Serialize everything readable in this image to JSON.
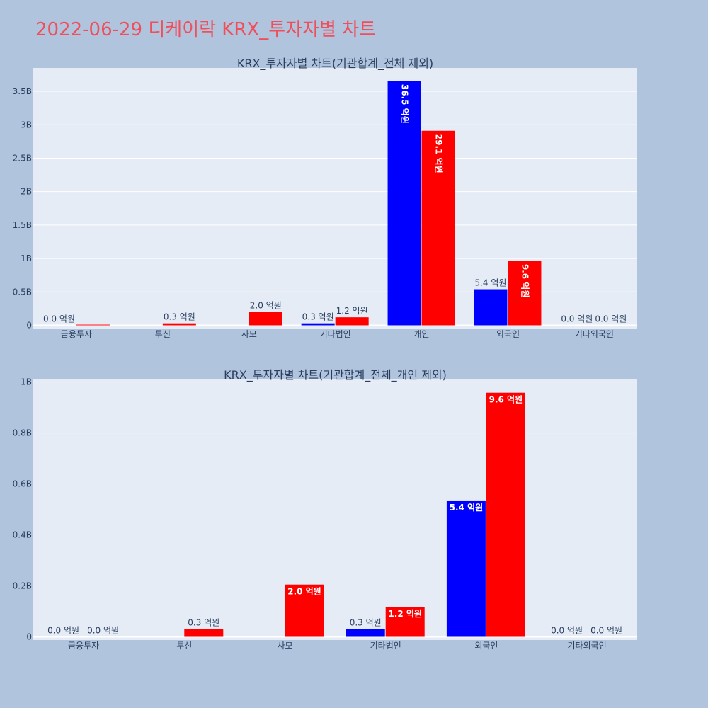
{
  "page_title": "2022-06-29 디케이락 KRX_투자자별 차트",
  "colors": {
    "page_background": "#b0c4de",
    "plot_background": "#e5ecf6",
    "title": "#ef4f5b",
    "text": "#2a3f5f",
    "series_a": "#0000ff",
    "series_b": "#ff0000"
  },
  "chart_data": [
    {
      "type": "bar",
      "title": "KRX_투자자별 차트(기관합계_전체 제외)",
      "categories": [
        "금융투자",
        "투신",
        "사모",
        "기타법인",
        "개인",
        "외국인",
        "기타외국인"
      ],
      "series": [
        {
          "color": "#0000ff",
          "values": [
            0,
            0,
            0,
            30000000,
            3650000000,
            540000000,
            0
          ],
          "labels": [
            "0.0 억원",
            "",
            "",
            "0.3 억원",
            "36.5 억원",
            "5.4 억원",
            "0.0 억원"
          ]
        },
        {
          "color": "#ff0000",
          "values": [
            10000000,
            30000000,
            200000000,
            120000000,
            2910000000,
            960000000,
            0
          ],
          "labels": [
            "",
            "0.3 억원",
            "2.0 억원",
            "1.2 억원",
            "29.1 억원",
            "9.6 억원",
            "0.0 억원"
          ]
        }
      ],
      "yticks": [
        0,
        500000000,
        1000000000,
        1500000000,
        2000000000,
        2500000000,
        3000000000,
        3500000000
      ],
      "ytick_labels": [
        "0",
        "0.5B",
        "1B",
        "1.5B",
        "2B",
        "2.5B",
        "3B",
        "3.5B"
      ],
      "ylim": [
        0,
        3850000000
      ],
      "grid": true,
      "legend": "none"
    },
    {
      "type": "bar",
      "title": "KRX_투자자별 차트(기관합계_전체_개인 제외)",
      "categories": [
        "금융투자",
        "투신",
        "사모",
        "기타법인",
        "외국인",
        "기타외국인"
      ],
      "series": [
        {
          "color": "#0000ff",
          "values": [
            0,
            0,
            0,
            30000000,
            535000000,
            0
          ],
          "labels": [
            "0.0 억원",
            "",
            "",
            "0.3 억원",
            "5.4 억원",
            "0.0 억원"
          ]
        },
        {
          "color": "#ff0000",
          "values": [
            0,
            30000000,
            205000000,
            118000000,
            958000000,
            0
          ],
          "labels": [
            "0.0 억원",
            "0.3 억원",
            "2.0 억원",
            "1.2 억원",
            "9.6 억원",
            "0.0 억원"
          ]
        }
      ],
      "yticks": [
        0,
        200000000,
        400000000,
        600000000,
        800000000,
        1000000000
      ],
      "ytick_labels": [
        "0",
        "0.2B",
        "0.4B",
        "0.6B",
        "0.8B",
        "1B"
      ],
      "ylim": [
        0,
        1010000000
      ],
      "grid": true,
      "legend": "none"
    }
  ]
}
